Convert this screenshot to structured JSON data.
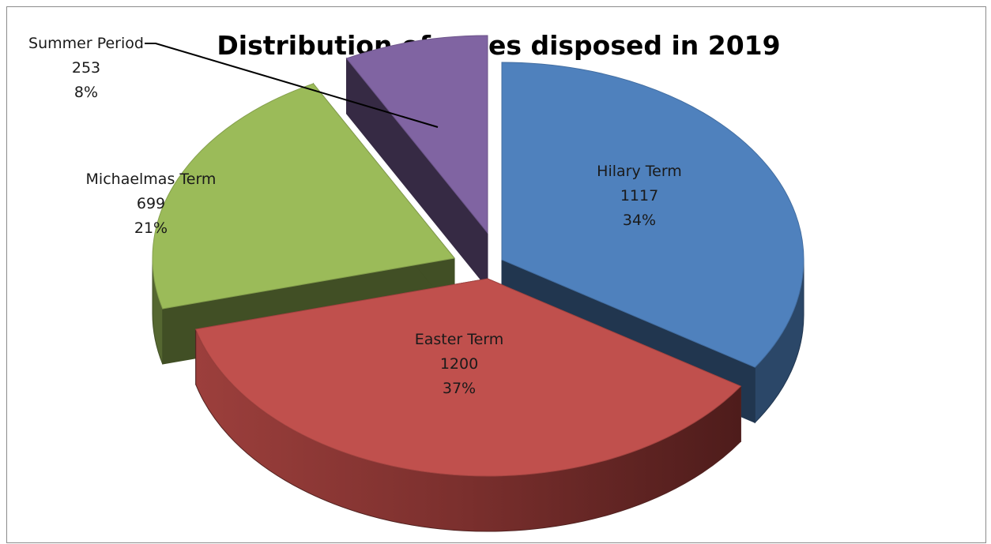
{
  "chart_data": {
    "type": "pie",
    "style": "3d-exploded",
    "title": "Distribution of cases disposed in 2019",
    "slices": [
      {
        "name": "Hilary Term",
        "value": 1117,
        "percent": "34%",
        "color": "#4f81bd",
        "label_position": "inside"
      },
      {
        "name": "Easter Term",
        "value": 1200,
        "percent": "37%",
        "color": "#c0504d",
        "label_position": "inside"
      },
      {
        "name": "Michaelmas Term",
        "value": 699,
        "percent": "21%",
        "color": "#9bbb59",
        "label_position": "outside"
      },
      {
        "name": "Summer Period",
        "value": 253,
        "percent": "8%",
        "color": "#8064a2",
        "label_position": "outside-with-leader"
      }
    ]
  }
}
